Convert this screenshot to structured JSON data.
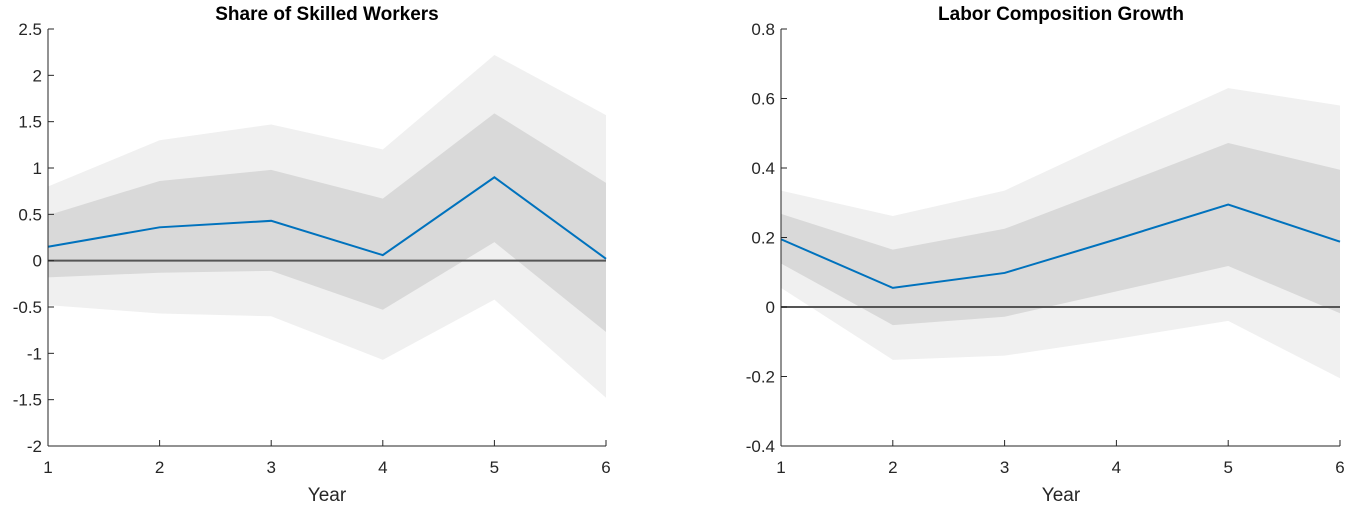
{
  "chart_data": [
    {
      "type": "line",
      "title": "Share of Skilled Workers",
      "xlabel": "",
      "ylabel": "",
      "x": [
        1,
        2,
        3,
        4,
        5,
        6
      ],
      "xlim": [
        1,
        6
      ],
      "ylim": [
        -2,
        2.5
      ],
      "xticks": [
        "1",
        "2",
        "3",
        "4",
        "5",
        "6"
      ],
      "yticks": [
        "2.5",
        "2",
        "1.5",
        "1",
        "0.5",
        "0",
        "-0.5",
        "-1",
        "-1.5",
        "-2"
      ],
      "ytick_values": [
        2.5,
        2,
        1.5,
        1,
        0.5,
        0,
        -0.5,
        -1,
        -1.5,
        -2
      ],
      "series": [
        {
          "values": [
            0.15,
            0.36,
            0.43,
            0.06,
            0.9,
            0.02
          ]
        }
      ],
      "bands": [
        {
          "level": "outer",
          "color": "#f0f0f0",
          "upper": [
            0.8,
            1.3,
            1.47,
            1.2,
            2.22,
            1.57
          ],
          "lower": [
            -0.48,
            -0.57,
            -0.6,
            -1.07,
            -0.42,
            -1.48
          ]
        },
        {
          "level": "inner",
          "color": "#d9d9d9",
          "upper": [
            0.49,
            0.86,
            0.98,
            0.67,
            1.59,
            0.84
          ],
          "lower": [
            -0.18,
            -0.13,
            -0.11,
            -0.53,
            0.2,
            -0.77
          ]
        }
      ],
      "reference_line": 0,
      "line_color": "#0072bd",
      "zero_color": "#555555",
      "grid": false,
      "box": false
    },
    {
      "type": "line",
      "title": "Labor Composition Growth",
      "xlabel": "Year",
      "ylabel": "",
      "x": [
        1,
        2,
        3,
        4,
        5,
        6
      ],
      "xlim": [
        1,
        6
      ],
      "ylim": [
        -0.4,
        0.8
      ],
      "xticks": [
        "1",
        "2",
        "3",
        "4",
        "5",
        "6"
      ],
      "yticks": [
        "0.8",
        "0.6",
        "0.4",
        "0.2",
        "0",
        "-0.2",
        "-0.4"
      ],
      "ytick_values": [
        0.8,
        0.6,
        0.4,
        0.2,
        0,
        -0.2,
        -0.4
      ],
      "series": [
        {
          "values": [
            0.195,
            0.055,
            0.098,
            0.195,
            0.295,
            0.188
          ]
        }
      ],
      "bands": [
        {
          "level": "outer",
          "color": "#f0f0f0",
          "upper": [
            0.335,
            0.262,
            0.335,
            0.485,
            0.63,
            0.58
          ],
          "lower": [
            0.055,
            -0.152,
            -0.14,
            -0.092,
            -0.04,
            -0.205
          ]
        },
        {
          "level": "inner",
          "color": "#d9d9d9",
          "upper": [
            0.268,
            0.165,
            0.225,
            0.348,
            0.472,
            0.395
          ],
          "lower": [
            0.125,
            -0.052,
            -0.028,
            0.045,
            0.118,
            -0.018
          ]
        }
      ],
      "reference_line": 0,
      "line_color": "#0072bd",
      "zero_color": "#555555",
      "grid": false,
      "box": false
    }
  ],
  "shared_xlabel": "Year"
}
